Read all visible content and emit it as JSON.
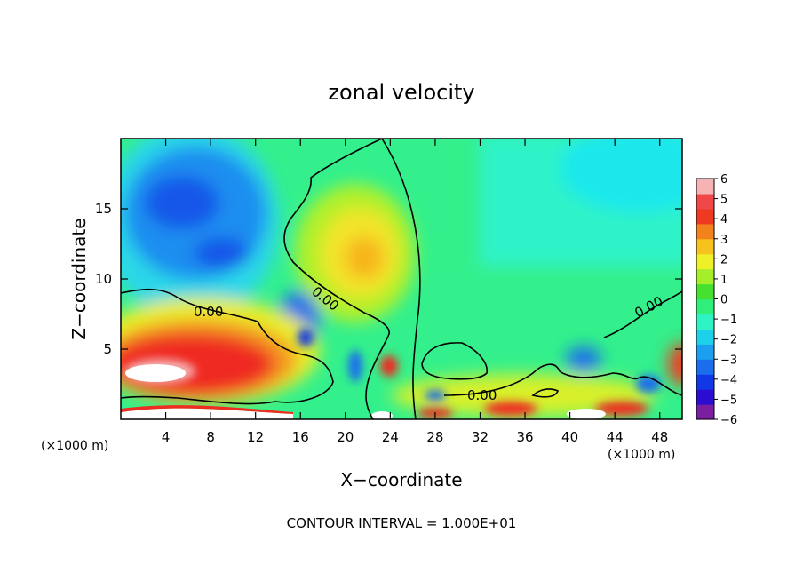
{
  "chart_data": {
    "type": "heatmap",
    "title": "zonal velocity",
    "xlabel": "X−coordinate",
    "ylabel": "Z−coordinate",
    "x_unit_left": "(×1000 m)",
    "x_unit_right": "(×1000 m)",
    "footer": "CONTOUR INTERVAL = 1.000E+01",
    "xlim": [
      0,
      50
    ],
    "ylim": [
      0,
      20
    ],
    "x_ticks": [
      4,
      8,
      12,
      16,
      20,
      24,
      28,
      32,
      36,
      40,
      44,
      48
    ],
    "y_ticks": [
      5,
      10,
      15
    ],
    "contour_labels": [
      "0.00",
      "0.00",
      "0.00",
      "0.00"
    ],
    "colorbar": {
      "ticks": [
        "6",
        "5",
        "4",
        "3",
        "2",
        "1",
        "0",
        "−1",
        "−2",
        "−3",
        "−4",
        "−5",
        "−6"
      ],
      "range": [
        -6,
        6
      ]
    },
    "features": [
      {
        "x": 5.5,
        "z": 15.0,
        "value": -4.2,
        "note": "upper-left negative core"
      },
      {
        "x": 9.5,
        "z": 11.5,
        "value": -4.0
      },
      {
        "x": 16.0,
        "z": 6.5,
        "value": -3.8
      },
      {
        "x": 21.0,
        "z": 12.0,
        "value": 2.6,
        "note": "mid positive core"
      },
      {
        "x": 6.0,
        "z": 3.2,
        "value": 6.0,
        "note": "lower-left positive core"
      },
      {
        "x": 10.0,
        "z": 4.0,
        "value": 4.5
      },
      {
        "x": 40.5,
        "z": 4.0,
        "value": -3.5
      },
      {
        "x": 49.5,
        "z": 4.0,
        "value": 4.0
      }
    ]
  }
}
